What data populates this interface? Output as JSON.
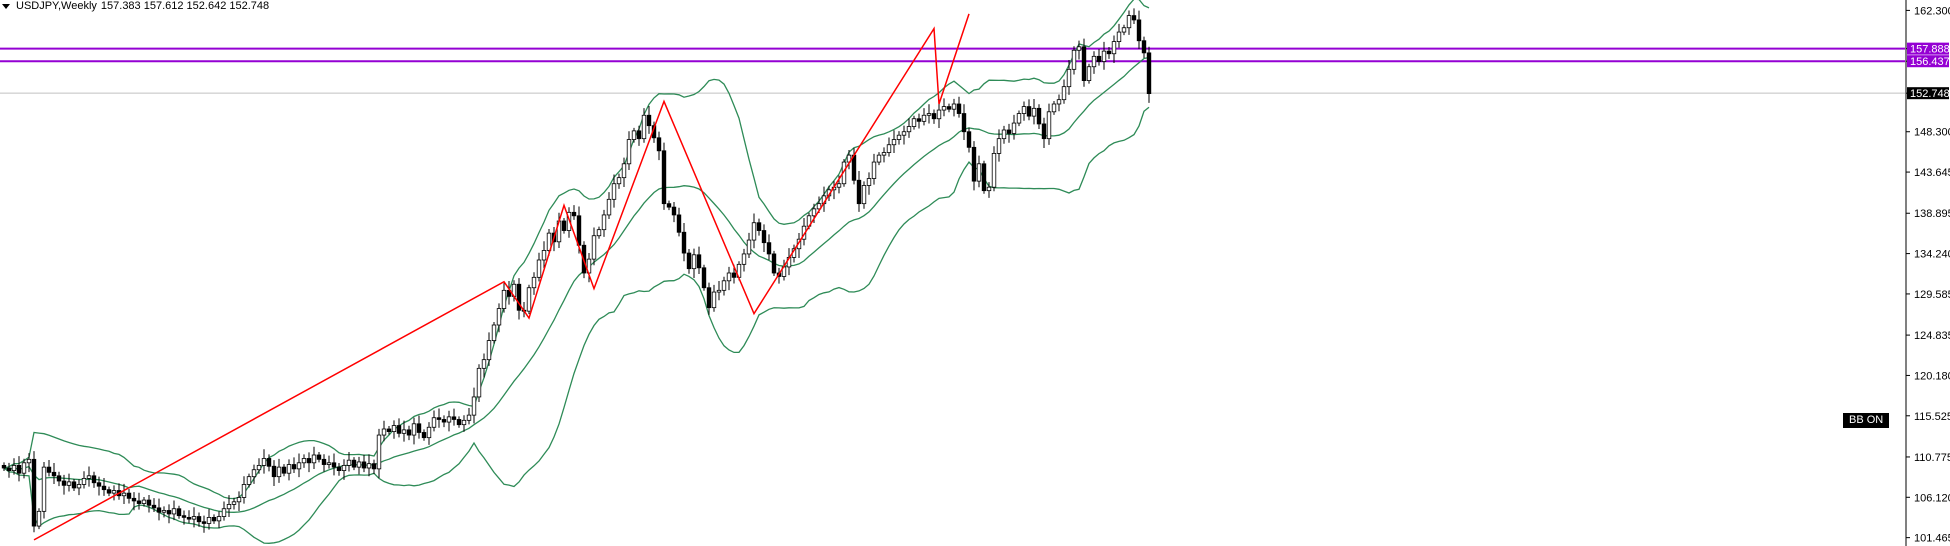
{
  "header": {
    "symbol_timeframe": "USDJPY,Weekly",
    "ohlc": "157.383 157.612 152.642 152.748"
  },
  "indicator_badge": "BB ON",
  "colors": {
    "candle": "#000000",
    "bands": "#2e8b57",
    "zigzag": "#ff0000",
    "hline": "#9400d3",
    "price_line": "#c0c0c0"
  },
  "chart_data": {
    "type": "candlestick",
    "title": "USDJPY,Weekly",
    "ylim": [
      100.5,
      163.5
    ],
    "y_ticks": [
      162.3,
      157.888,
      156.437,
      152.748,
      148.3,
      143.645,
      138.895,
      134.24,
      129.585,
      124.835,
      120.18,
      115.525,
      110.775,
      106.12,
      101.465
    ],
    "price_tags": [
      {
        "label": "157.888",
        "value": 157.888,
        "style": "hline"
      },
      {
        "label": "156.437",
        "value": 156.437,
        "style": "hline"
      },
      {
        "label": "152.748",
        "value": 152.748,
        "style": "price"
      }
    ],
    "horizontal_lines": [
      157.888,
      156.437
    ],
    "current_price": 152.748,
    "closes": [
      109.5,
      109.2,
      109.8,
      108.9,
      110.1,
      110.5,
      102.8,
      104.5,
      109.6,
      109.0,
      108.6,
      108.0,
      107.5,
      107.9,
      107.2,
      107.6,
      108.3,
      108.6,
      107.8,
      107.4,
      107.0,
      106.6,
      106.9,
      106.3,
      106.6,
      106.0,
      105.7,
      105.4,
      105.8,
      105.2,
      104.9,
      104.4,
      104.6,
      104.2,
      104.8,
      104.0,
      103.8,
      103.6,
      103.9,
      103.3,
      103.1,
      103.8,
      103.4,
      103.9,
      104.8,
      105.3,
      105.6,
      106.1,
      107.6,
      108.5,
      109.3,
      109.8,
      110.6,
      109.7,
      108.5,
      109.6,
      108.9,
      109.9,
      109.4,
      110.1,
      110.6,
      110.1,
      111.0,
      110.5,
      109.9,
      110.1,
      109.6,
      109.2,
      109.8,
      110.4,
      109.6,
      110.2,
      109.5,
      110.0,
      109.4,
      113.3,
      114.0,
      113.7,
      114.4,
      113.5,
      113.9,
      113.3,
      114.6,
      113.6,
      113.0,
      114.2,
      115.3,
      115.1,
      114.8,
      115.4,
      115.1,
      114.5,
      115.0,
      115.6,
      117.7,
      121.0,
      122.0,
      124.2,
      126.0,
      127.9,
      130.0,
      129.3,
      130.7,
      127.7,
      127.6,
      130.3,
      131.5,
      133.5,
      134.6,
      136.6,
      135.6,
      138.0,
      136.9,
      139.0,
      138.6,
      135.2,
      132.0,
      133.6,
      136.3,
      137.0,
      138.7,
      140.5,
      142.3,
      143.0,
      144.6,
      147.4,
      148.4,
      147.5,
      150.2,
      149.0,
      147.6,
      146.1,
      140.0,
      139.6,
      138.7,
      136.7,
      134.3,
      132.5,
      134.1,
      132.6,
      130.3,
      128.0,
      129.8,
      130.0,
      131.1,
      132.0,
      131.5,
      133.0,
      134.2,
      135.8,
      137.8,
      136.9,
      135.5,
      134.2,
      132.0,
      131.6,
      132.7,
      133.8,
      134.8,
      135.9,
      137.4,
      138.6,
      139.4,
      140.0,
      140.9,
      141.6,
      141.9,
      142.3,
      144.8,
      145.6,
      142.7,
      140.0,
      142.1,
      142.9,
      144.8,
      145.6,
      145.9,
      146.8,
      147.4,
      147.9,
      148.3,
      148.9,
      149.8,
      149.5,
      150.2,
      150.4,
      149.8,
      150.8,
      151.2,
      150.9,
      151.5,
      150.4,
      148.3,
      146.5,
      142.6,
      144.6,
      141.5,
      141.9,
      145.8,
      147.5,
      148.5,
      148.1,
      149.3,
      150.4,
      151.2,
      150.1,
      151.0,
      149.2,
      147.5,
      150.6,
      151.5,
      152.0,
      153.5,
      155.5,
      157.7,
      158.1,
      154.2,
      155.8,
      157.0,
      156.4,
      157.6,
      157.3,
      158.7,
      159.8,
      160.3,
      161.7,
      161.2,
      158.8,
      157.4,
      152.7
    ],
    "zigzag": [
      {
        "bar": 6,
        "value": 101.2
      },
      {
        "bar": 100,
        "value": 131.0
      },
      {
        "bar": 105,
        "value": 126.8
      },
      {
        "bar": 112,
        "value": 139.8
      },
      {
        "bar": 118,
        "value": 130.2
      },
      {
        "bar": 132,
        "value": 151.8
      },
      {
        "bar": 150,
        "value": 127.3
      },
      {
        "bar": 186,
        "value": 160.2
      },
      {
        "bar": 187,
        "value": 151.5
      },
      {
        "bar": 193,
        "value": 161.9
      }
    ],
    "indicator": "Bollinger Bands",
    "grid": false,
    "legend": "none"
  }
}
